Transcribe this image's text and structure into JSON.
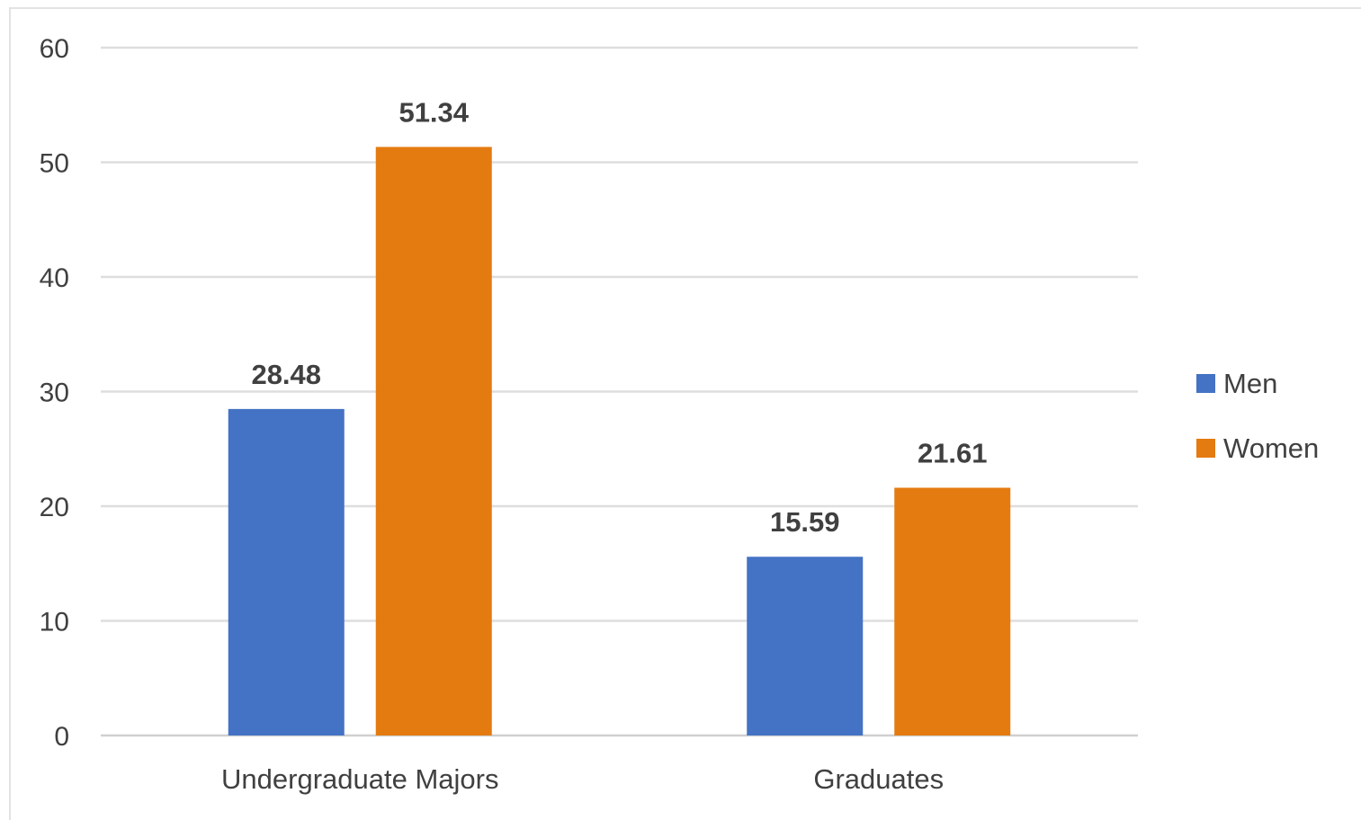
{
  "chart_data": {
    "type": "bar",
    "categories": [
      "Undergraduate Majors",
      "Graduates"
    ],
    "series": [
      {
        "name": "Men",
        "values": [
          28.48,
          15.59
        ],
        "color": "#4472C4"
      },
      {
        "name": "Women",
        "values": [
          51.34,
          21.61
        ],
        "color": "#E47B11"
      }
    ],
    "data_labels": [
      [
        "28.48",
        "15.59"
      ],
      [
        "51.34",
        "21.61"
      ]
    ],
    "ylim": [
      0,
      60
    ],
    "yticks": [
      0,
      10,
      20,
      30,
      40,
      50,
      60
    ],
    "grid": true,
    "legend_position": "right",
    "title": "",
    "xlabel": "",
    "ylabel": ""
  }
}
